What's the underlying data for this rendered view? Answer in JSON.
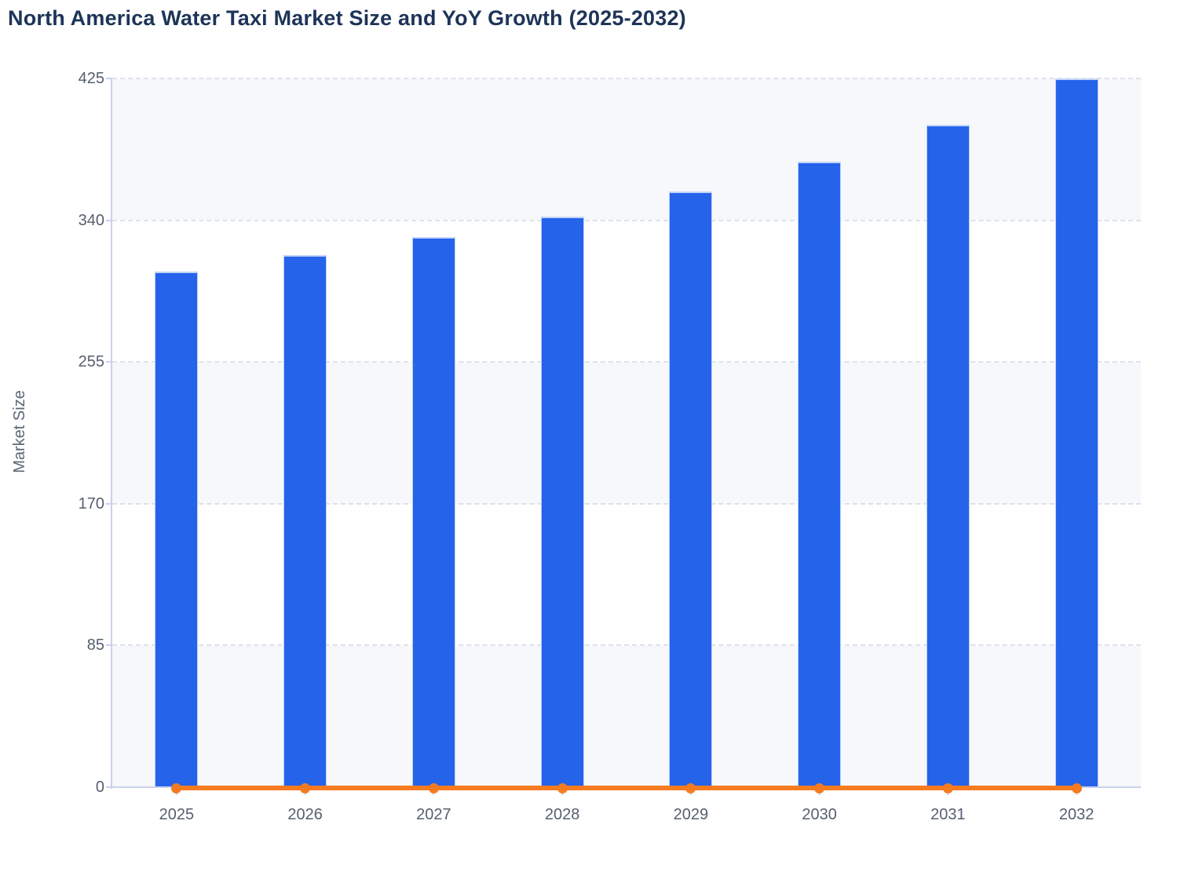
{
  "header": {
    "title": "North America Water Taxi Market Size and YoY Growth (2025-2032)"
  },
  "colors": {
    "bar_blue": "#2563eb",
    "line_orange": "#f57b20",
    "axis_periwinkle": "#c9d1ee",
    "gridline_gray": "#dde1ea",
    "band_light": "#f7f8fb",
    "title_navy": "#1d3458",
    "tick_text_gray": "#565e70"
  },
  "chart_data": {
    "type": "bar",
    "title": "North America Water Taxi Market Size and YoY Growth (2025-2032)",
    "categories": [
      "2025",
      "2026",
      "2027",
      "2028",
      "2029",
      "2030",
      "2031",
      "2032"
    ],
    "series": [
      {
        "name": "Market Size",
        "type": "bar",
        "color": "#2563eb",
        "values": [
          309,
          319,
          330,
          342,
          357,
          375,
          397,
          425
        ]
      },
      {
        "name": "YoY Growth",
        "type": "line",
        "color": "#f57b20",
        "values": [
          0,
          0,
          0,
          0,
          0,
          0,
          0,
          0
        ]
      }
    ],
    "xlabel": "",
    "ylabel": "Market Size",
    "ylim": [
      0,
      425
    ],
    "y_ticks": [
      0,
      85,
      170,
      255,
      340,
      425
    ],
    "grid": "horizontal-dashed",
    "legend": "none",
    "plot_bands": "alternating horizontal stripes every 85 units"
  }
}
